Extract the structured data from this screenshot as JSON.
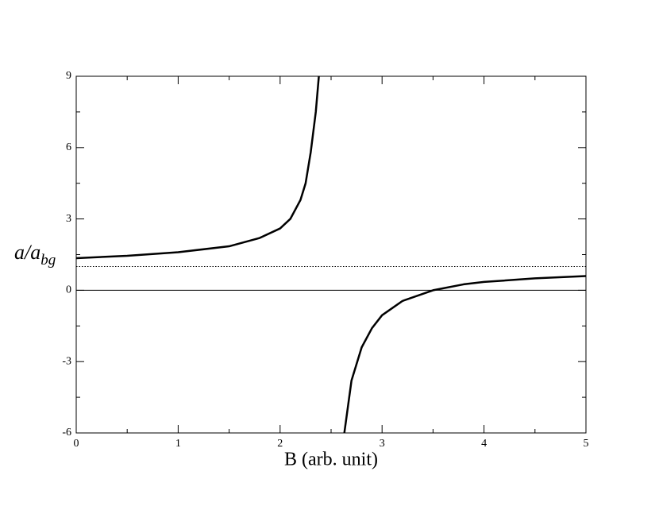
{
  "chart_data": {
    "type": "line",
    "xlabel": "B (arb. unit)",
    "ylabel": "a/a",
    "ylabel_sub": "bg",
    "xlim": [
      0,
      5
    ],
    "xticks": [
      0,
      1,
      2,
      3,
      4,
      5
    ],
    "ylim": [
      -6,
      9
    ],
    "yticks": [
      -6,
      -3,
      0,
      3,
      6,
      9
    ],
    "hlines": [
      1,
      0
    ],
    "hline_styles": [
      "dotted",
      "solid"
    ],
    "series": [
      {
        "color": "#000000",
        "x": [
          0,
          0.5,
          1,
          1.5,
          1.8,
          2.0,
          2.1,
          2.2,
          2.25,
          2.3,
          2.35,
          2.38,
          null,
          2.63,
          2.7,
          2.8,
          2.9,
          3.0,
          3.2,
          3.5,
          3.8,
          4.0,
          4.5,
          5.0
        ],
        "values": [
          1.35,
          1.45,
          1.6,
          1.85,
          2.2,
          2.6,
          3.0,
          3.8,
          4.5,
          5.8,
          7.5,
          9,
          null,
          -6,
          -3.8,
          -2.4,
          -1.6,
          -1.05,
          -0.45,
          0,
          0.25,
          0.35,
          0.5,
          0.6
        ]
      }
    ]
  }
}
